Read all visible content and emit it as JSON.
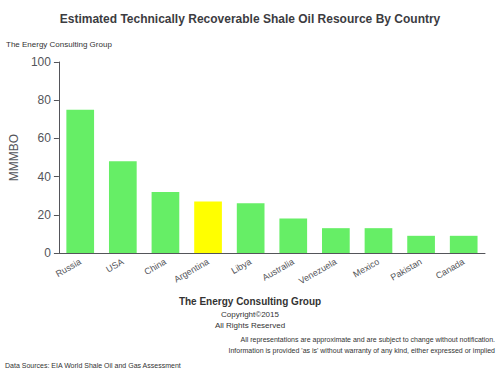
{
  "chart_data": {
    "type": "bar",
    "title": "Estimated Technically Recoverable Shale Oil Resource By Country",
    "y_label": "MMMBO",
    "categories": [
      "Russia",
      "USA",
      "China",
      "Argentina",
      "Libya",
      "Australia",
      "Venezuela",
      "Mexico",
      "Pakistan",
      "Canada"
    ],
    "values": [
      75,
      48,
      32,
      27,
      26,
      18,
      13,
      13,
      9,
      9
    ],
    "colors": [
      "#66ee66",
      "#66ee66",
      "#66ee66",
      "#ffff00",
      "#66ee66",
      "#66ee66",
      "#66ee66",
      "#66ee66",
      "#66ee66",
      "#66ee66"
    ],
    "ylim": [
      0,
      100
    ],
    "yticks": [
      0,
      20,
      40,
      60,
      80,
      100
    ],
    "grid": false,
    "annotations": [
      "The Energy Consulting Group",
      "The Energy Consulting Group",
      "Copyright©2015",
      "All Rights Reserved",
      "Data Sources: EIA World Shale Oil and Gas Assessment",
      "All representations are approximate and are subject to change without notification.",
      "Information is provided 'as is' without warranty of any kind, either expressed or implied"
    ]
  }
}
